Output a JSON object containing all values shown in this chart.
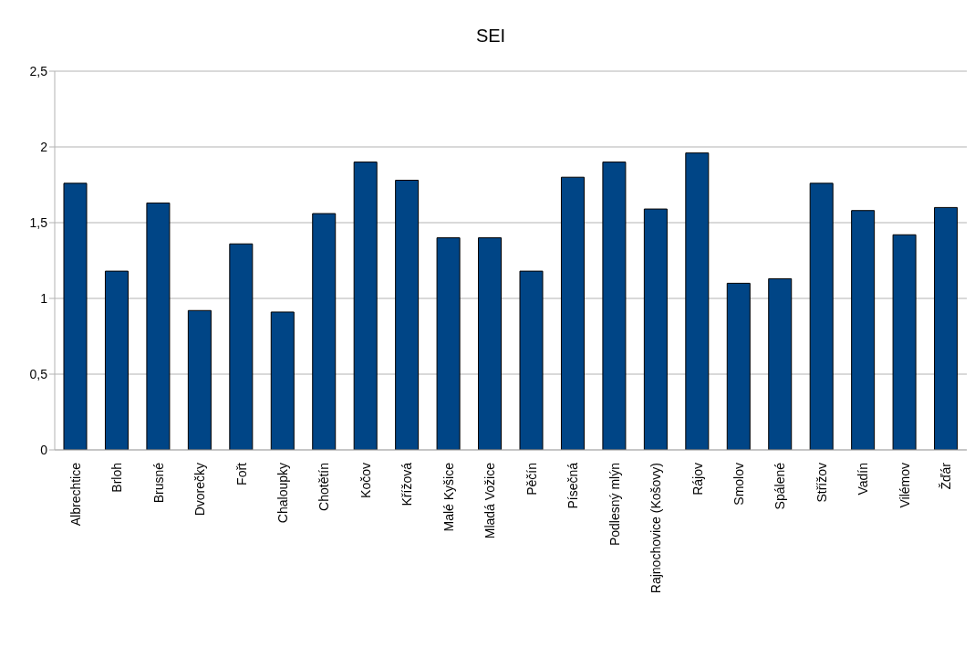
{
  "chart_data": {
    "type": "bar",
    "title": "SEI",
    "categories": [
      "Albrechtice",
      "Brloh",
      "Brusné",
      "Dvorečky",
      "Fořt",
      "Chaloupky",
      "Chotětín",
      "Kočov",
      "Křížová",
      "Malé Kyšice",
      "Mladá Vožice",
      "Pěčín",
      "Písečná",
      "Podlesný mlýn",
      "Rajnochovice (Košovy)",
      "Rájov",
      "Smolov",
      "Spálené",
      "Střížov",
      "Vadín",
      "Vilémov",
      "Žďár"
    ],
    "values": [
      1.76,
      1.18,
      1.63,
      0.92,
      1.36,
      0.91,
      1.56,
      1.9,
      1.78,
      1.4,
      1.4,
      1.18,
      1.8,
      1.9,
      1.59,
      1.96,
      1.1,
      1.13,
      1.76,
      1.58,
      1.42,
      1.6
    ],
    "color": "#004586",
    "ylim": [
      0,
      2.5
    ],
    "yticks": [
      0,
      {
        "value": 0.5,
        "label": "0,5"
      },
      1,
      {
        "value": 1.5,
        "label": "1,5"
      },
      2,
      {
        "value": 2.5,
        "label": "2,5"
      }
    ],
    "grid": "y"
  }
}
